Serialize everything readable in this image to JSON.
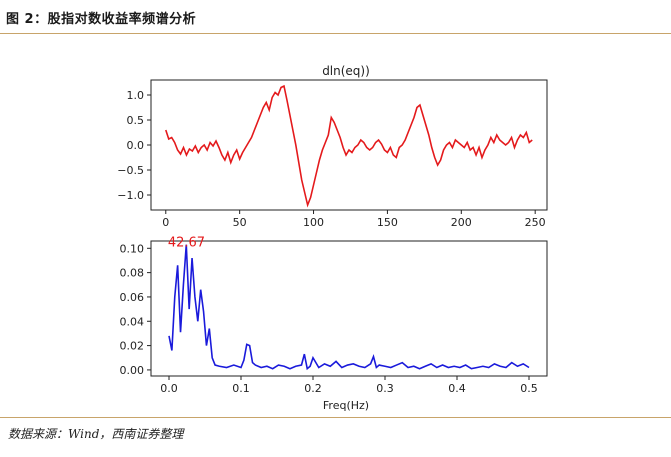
{
  "figure_title": "图 2：股指对数收益率频谱分析",
  "source": "数据来源：Wind，西南证券整理",
  "colors": {
    "rule": "#c8a46a",
    "series1": "#e41a1c",
    "series2": "#1a1adb",
    "annotation": "#e41a1c"
  },
  "chart_data": [
    {
      "type": "line",
      "title": "dln(eq))",
      "xlabel": "",
      "ylabel": "",
      "xlim": [
        -10,
        258
      ],
      "ylim": [
        -1.3,
        1.3
      ],
      "xticks": [
        0,
        50,
        100,
        150,
        200,
        250
      ],
      "yticks": [
        -1.0,
        -0.5,
        0.0,
        0.5,
        1.0
      ],
      "ytick_labels": [
        "−1.0",
        "−0.5",
        "0.0",
        "0.5",
        "1.0"
      ],
      "grid": false,
      "series": [
        {
          "x": [
            0,
            2,
            4,
            6,
            8,
            10,
            12,
            14,
            16,
            18,
            20,
            22,
            24,
            26,
            28,
            30,
            32,
            34,
            36,
            38,
            40,
            42,
            44,
            46,
            48,
            50,
            52,
            54,
            56,
            58,
            60,
            62,
            64,
            66,
            68,
            70,
            72,
            74,
            76,
            78,
            80,
            82,
            84,
            86,
            88,
            90,
            92,
            94,
            96,
            98,
            100,
            102,
            104,
            106,
            108,
            110,
            112,
            114,
            116,
            118,
            120,
            122,
            124,
            126,
            128,
            130,
            132,
            134,
            136,
            138,
            140,
            142,
            144,
            146,
            148,
            150,
            152,
            154,
            156,
            158,
            160,
            162,
            164,
            166,
            168,
            170,
            172,
            174,
            176,
            178,
            180,
            182,
            184,
            186,
            188,
            190,
            192,
            194,
            196,
            198,
            200,
            202,
            204,
            206,
            208,
            210,
            212,
            214,
            216,
            218,
            220,
            222,
            224,
            226,
            228,
            230,
            232,
            234,
            236,
            238,
            240,
            242,
            244,
            246,
            248
          ],
          "y": [
            0.3,
            0.12,
            0.15,
            0.05,
            -0.1,
            -0.18,
            -0.05,
            -0.2,
            -0.08,
            -0.12,
            -0.02,
            -0.15,
            -0.05,
            0.0,
            -0.1,
            0.05,
            -0.02,
            0.08,
            -0.05,
            -0.2,
            -0.3,
            -0.15,
            -0.35,
            -0.2,
            -0.1,
            -0.28,
            -0.15,
            -0.05,
            0.05,
            0.15,
            0.3,
            0.45,
            0.6,
            0.75,
            0.85,
            0.7,
            0.95,
            1.05,
            1.0,
            1.15,
            1.18,
            0.9,
            0.6,
            0.3,
            0.0,
            -0.35,
            -0.7,
            -0.95,
            -1.2,
            -1.05,
            -0.8,
            -0.55,
            -0.3,
            -0.1,
            0.05,
            0.2,
            0.55,
            0.45,
            0.3,
            0.15,
            -0.05,
            -0.2,
            -0.1,
            -0.15,
            -0.05,
            0.0,
            0.1,
            0.05,
            -0.05,
            -0.1,
            -0.05,
            0.05,
            0.1,
            0.02,
            -0.1,
            -0.15,
            -0.05,
            -0.2,
            -0.25,
            -0.05,
            0.0,
            0.1,
            0.25,
            0.4,
            0.55,
            0.75,
            0.8,
            0.6,
            0.4,
            0.2,
            -0.05,
            -0.25,
            -0.4,
            -0.3,
            -0.1,
            0.0,
            0.05,
            -0.05,
            0.1,
            0.05,
            0.0,
            -0.05,
            0.05,
            -0.1,
            -0.05,
            -0.2,
            -0.05,
            -0.25,
            -0.1,
            0.0,
            0.15,
            0.05,
            0.2,
            0.1,
            0.05,
            0.0,
            0.05,
            0.15,
            -0.05,
            0.1,
            0.2,
            0.15,
            0.25,
            0.05,
            0.1
          ]
        }
      ]
    },
    {
      "type": "line",
      "title": "",
      "xlabel": "Freq(Hz)",
      "ylabel": "",
      "xlim": [
        -0.025,
        0.525
      ],
      "ylim": [
        -0.005,
        0.106
      ],
      "xticks": [
        0.0,
        0.1,
        0.2,
        0.3,
        0.4,
        0.5
      ],
      "xtick_labels": [
        "0.0",
        "0.1",
        "0.2",
        "0.3",
        "0.4",
        "0.5"
      ],
      "yticks": [
        0.0,
        0.02,
        0.04,
        0.06,
        0.08,
        0.1
      ],
      "ytick_labels": [
        "0.00",
        "0.02",
        "0.04",
        "0.06",
        "0.08",
        "0.10"
      ],
      "grid": false,
      "annotation": {
        "text": "42.67",
        "x": 0.0234,
        "y": 0.103
      },
      "series": [
        {
          "x": [
            0.0,
            0.004,
            0.008,
            0.012,
            0.016,
            0.02,
            0.024,
            0.028,
            0.032,
            0.036,
            0.04,
            0.044,
            0.048,
            0.052,
            0.056,
            0.06,
            0.064,
            0.07,
            0.08,
            0.09,
            0.1,
            0.104,
            0.108,
            0.112,
            0.116,
            0.12,
            0.128,
            0.136,
            0.144,
            0.152,
            0.16,
            0.168,
            0.176,
            0.184,
            0.188,
            0.192,
            0.196,
            0.2,
            0.208,
            0.216,
            0.224,
            0.232,
            0.24,
            0.248,
            0.256,
            0.264,
            0.272,
            0.28,
            0.284,
            0.288,
            0.292,
            0.3,
            0.308,
            0.316,
            0.324,
            0.332,
            0.34,
            0.348,
            0.356,
            0.364,
            0.372,
            0.38,
            0.388,
            0.396,
            0.404,
            0.412,
            0.42,
            0.428,
            0.436,
            0.444,
            0.452,
            0.46,
            0.468,
            0.476,
            0.484,
            0.492,
            0.5
          ],
          "y": [
            0.028,
            0.016,
            0.06,
            0.086,
            0.031,
            0.07,
            0.103,
            0.05,
            0.092,
            0.06,
            0.04,
            0.066,
            0.048,
            0.02,
            0.034,
            0.01,
            0.004,
            0.003,
            0.002,
            0.004,
            0.002,
            0.008,
            0.021,
            0.02,
            0.006,
            0.004,
            0.002,
            0.003,
            0.001,
            0.004,
            0.003,
            0.001,
            0.003,
            0.004,
            0.013,
            0.001,
            0.003,
            0.01,
            0.002,
            0.005,
            0.003,
            0.007,
            0.002,
            0.004,
            0.005,
            0.003,
            0.002,
            0.005,
            0.011,
            0.002,
            0.004,
            0.003,
            0.002,
            0.004,
            0.006,
            0.002,
            0.003,
            0.001,
            0.003,
            0.005,
            0.002,
            0.004,
            0.002,
            0.003,
            0.002,
            0.004,
            0.001,
            0.002,
            0.003,
            0.002,
            0.005,
            0.003,
            0.002,
            0.006,
            0.003,
            0.005,
            0.002
          ]
        }
      ]
    }
  ]
}
